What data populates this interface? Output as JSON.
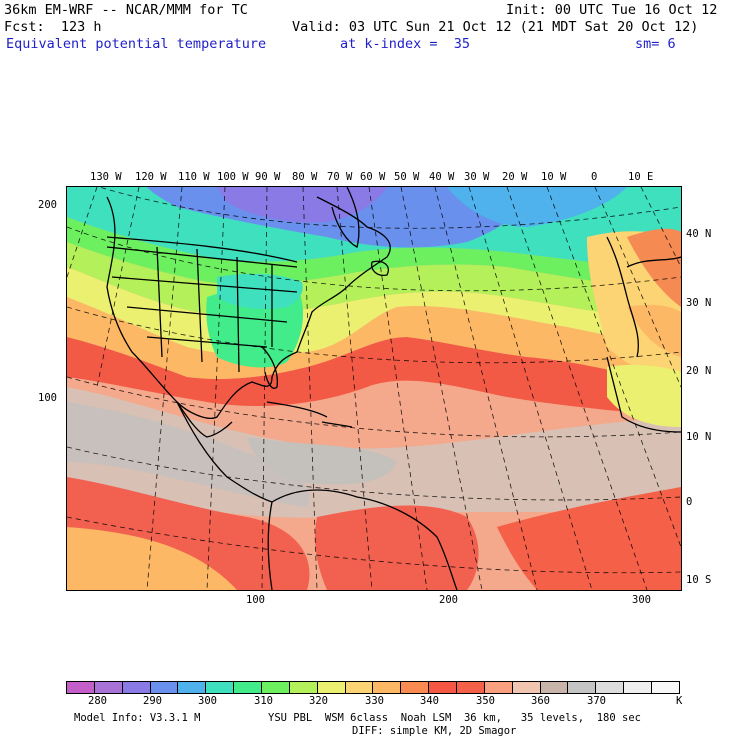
{
  "header": {
    "model": "36km EM-WRF -- NCAR/MMM for TC",
    "init": "Init: 00 UTC Tue 16 Oct 12",
    "fcst": "Fcst:  123 h",
    "valid": "Valid: 03 UTC Sun 21 Oct 12 (21 MDT Sat 20 Oct 12)",
    "field": "Equivalent potential temperature",
    "level": "at k-index =  35",
    "smooth": "sm= 6"
  },
  "map": {
    "top_lon_labels": [
      "130 W",
      "120 W",
      "110 W",
      "100 W",
      "90 W",
      "80 W",
      "70 W",
      "60 W",
      "50 W",
      "40 W",
      "30 W",
      "20 W",
      "10 W",
      "0",
      "10 E"
    ],
    "right_lat_labels": [
      "40 N",
      "30 N",
      "20 N",
      "10 N",
      "0",
      "10 S"
    ],
    "left_grid_labels": [
      "200",
      "100"
    ],
    "bottom_grid_labels": [
      "100",
      "200",
      "300"
    ]
  },
  "legend": {
    "colors": [
      "#c45ec8",
      "#a872d6",
      "#8a7ae6",
      "#6a90ee",
      "#4fb2ec",
      "#3fe0be",
      "#42ec8a",
      "#6cf060",
      "#b4f05a",
      "#ecf070",
      "#fcd474",
      "#fcb864",
      "#f88a52",
      "#f45844",
      "#f46048",
      "#f8a080",
      "#f0c6b0",
      "#c8b4a8",
      "#c4c4c4",
      "#dcdcdc",
      "#efefef",
      "#f8f8f8"
    ],
    "labels": [
      "280",
      "290",
      "300",
      "310",
      "320",
      "330",
      "340",
      "350",
      "360",
      "370"
    ],
    "unit": "K"
  },
  "footer": {
    "model_info": "Model Info: V3.3.1 M",
    "physics": "YSU PBL  WSM 6class  Noah LSM  36 km,   35 levels,  180 sec",
    "diff": "DIFF: simple KM, 2D Smagor"
  }
}
